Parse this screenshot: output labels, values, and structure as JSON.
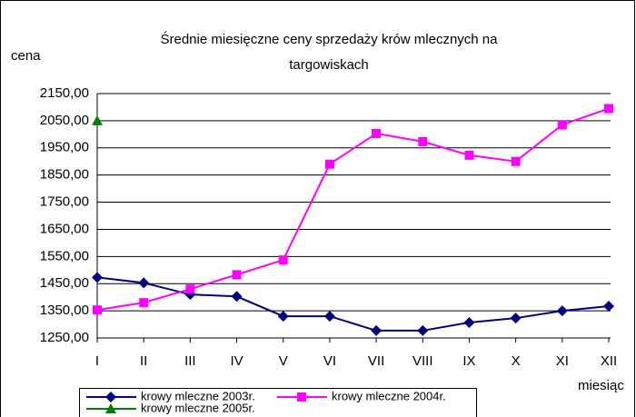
{
  "chart_data": {
    "type": "line",
    "title": [
      "Średnie miesięczne ceny sprzedaży krów mlecznych na",
      "targowiskach"
    ],
    "y_label": "cena",
    "x_label": "miesiąc",
    "categories": [
      "I",
      "II",
      "III",
      "IV",
      "V",
      "VI",
      "VII",
      "VIII",
      "IX",
      "X",
      "XI",
      "XII"
    ],
    "series": [
      {
        "name": "krowy mleczne 2003r.",
        "color": "#000080",
        "marker": "diamond",
        "values": [
          1473,
          1453,
          1410,
          1403,
          1330,
          1330,
          1277,
          1277,
          1307,
          1323,
          1350,
          1367
        ]
      },
      {
        "name": "krowy mleczne 2004r.",
        "color": "#ff00ff",
        "marker": "square",
        "values": [
          1353,
          1380,
          1430,
          1483,
          1537,
          1890,
          2003,
          1973,
          1923,
          1900,
          2035,
          2095
        ]
      },
      {
        "name": "krowy mleczne 2005r.",
        "color": "#008000",
        "marker": "triangle",
        "values": [
          2050,
          null,
          null,
          null,
          null,
          null,
          null,
          null,
          null,
          null,
          null,
          null
        ]
      }
    ],
    "ylim": [
      1250,
      2150
    ],
    "yticks": [
      {
        "value": 1250,
        "label": "1250,00"
      },
      {
        "value": 1350,
        "label": "1350,00"
      },
      {
        "value": 1450,
        "label": "1450,00"
      },
      {
        "value": 1550,
        "label": "1550,00"
      },
      {
        "value": 1650,
        "label": "1650,00"
      },
      {
        "value": 1750,
        "label": "1750,00"
      },
      {
        "value": 1850,
        "label": "1850,00"
      },
      {
        "value": 1950,
        "label": "1950,00"
      },
      {
        "value": 2050,
        "label": "2050,00"
      },
      {
        "value": 2150,
        "label": "2150,00"
      }
    ],
    "grid": true,
    "legend": "bottom"
  }
}
